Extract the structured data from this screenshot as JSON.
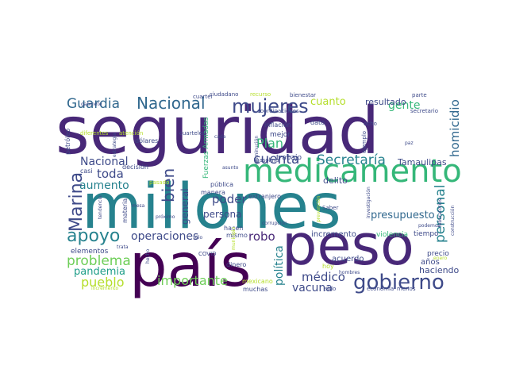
{
  "palette": {
    "dark_purple": "#440154",
    "purple": "#482878",
    "indigo": "#3e4a89",
    "blue": "#31688e",
    "teal": "#26828e",
    "green_teal": "#1f9e89",
    "green": "#35b779",
    "light_green": "#6ece58",
    "yellow_green": "#b5de2b",
    "yellow": "#fde725"
  },
  "words": [
    {
      "text": "seguridad",
      "color": "#482878"
    },
    {
      "text": "millones",
      "color": "#26828e"
    },
    {
      "text": "país",
      "color": "#440154"
    },
    {
      "text": "peso",
      "color": "#482878"
    },
    {
      "text": "medicamento",
      "color": "#35b779"
    },
    {
      "text": "gobierno",
      "color": "#3e4a89"
    },
    {
      "text": "mujeres",
      "color": "#3e4a89"
    },
    {
      "text": "Guardia",
      "color": "#31688e"
    },
    {
      "text": "Nacional",
      "color": "#31688e"
    },
    {
      "text": "apoyo",
      "color": "#26828e"
    },
    {
      "text": "Marina",
      "color": "#3e4a89"
    },
    {
      "text": "bien",
      "color": "#3e4a89"
    },
    {
      "text": "problema",
      "color": "#6ece58"
    },
    {
      "text": "pueblo",
      "color": "#b5de2b"
    },
    {
      "text": "importante",
      "color": "#6ece58"
    },
    {
      "text": "Secretaría",
      "color": "#26828e"
    },
    {
      "text": "cuenta",
      "color": "#3e4a89"
    },
    {
      "text": "Plan",
      "color": "#35b779"
    },
    {
      "text": "gente",
      "color": "#35b779"
    },
    {
      "text": "cuanto",
      "color": "#b5de2b"
    },
    {
      "text": "resultado",
      "color": "#3e4a89"
    },
    {
      "text": "homicidio",
      "color": "#31688e"
    },
    {
      "text": "personal",
      "color": "#26828e"
    },
    {
      "text": "presupuesto",
      "color": "#31688e"
    },
    {
      "text": "operaciones",
      "color": "#3e4a89"
    },
    {
      "text": "médico",
      "color": "#3e4a89"
    },
    {
      "text": "vacuna",
      "color": "#3e4a89"
    },
    {
      "text": "política",
      "color": "#26828e"
    },
    {
      "text": "robo",
      "color": "#482878"
    },
    {
      "text": "poder",
      "color": "#3e4a89"
    },
    {
      "text": "persona",
      "color": "#3e4a89"
    },
    {
      "text": "general",
      "color": "#3e4a89"
    },
    {
      "text": "Nacional",
      "color": "#3e4a89"
    },
    {
      "text": "toda",
      "color": "#3e4a89"
    },
    {
      "text": "aumento",
      "color": "#26828e"
    },
    {
      "text": "pandemia",
      "color": "#1f9e89"
    },
    {
      "text": "Tamaulipas",
      "color": "#3e4a89"
    },
    {
      "text": "delito",
      "color": "#3e4a89"
    },
    {
      "text": "incremento",
      "color": "#3e4a89"
    },
    {
      "text": "acuerdo",
      "color": "#3e4a89"
    },
    {
      "text": "haciendo",
      "color": "#3e4a89"
    },
    {
      "text": "años",
      "color": "#3e4a89"
    },
    {
      "text": "precio",
      "color": "#3e4a89"
    },
    {
      "text": "tiempo",
      "color": "#3e4a89"
    },
    {
      "text": "violencia",
      "color": "#35b779"
    },
    {
      "text": "mejor",
      "color": "#3e4a89"
    },
    {
      "text": "trabajo",
      "color": "#3e4a89"
    },
    {
      "text": "inflación",
      "color": "#3e4a89"
    },
    {
      "text": "dato",
      "color": "#3e4a89"
    },
    {
      "text": "decisión",
      "color": "#3e4a89"
    },
    {
      "text": "elementos",
      "color": "#3e4a89"
    },
    {
      "text": "muchas",
      "color": "#3e4a89"
    },
    {
      "text": "mexicano",
      "color": "#b5de2b"
    },
    {
      "text": "hoy",
      "color": "#b5de2b"
    },
    {
      "text": "dinero",
      "color": "#3e4a89"
    },
    {
      "text": "extranjero",
      "color": "#3e4a89"
    },
    {
      "text": "pública",
      "color": "#3e4a89"
    },
    {
      "text": "manera",
      "color": "#3e4a89"
    },
    {
      "text": "dólares",
      "color": "#3e4a89"
    },
    {
      "text": "casi",
      "color": "#3e4a89"
    },
    {
      "text": "materia",
      "color": "#3e4a89"
    },
    {
      "text": "petróleo",
      "color": "#3e4a89"
    },
    {
      "text": "cuarteles",
      "color": "#3e4a89"
    },
    {
      "text": "cuartel",
      "color": "#3e4a89"
    },
    {
      "text": "ciudadano",
      "color": "#3e4a89"
    },
    {
      "text": "recurso",
      "color": "#b5de2b"
    },
    {
      "text": "bienestar",
      "color": "#3e4a89"
    },
    {
      "text": "parte",
      "color": "#3e4a89"
    },
    {
      "text": "secretario",
      "color": "#3e4a89"
    },
    {
      "text": "ocho",
      "color": "#3e4a89"
    },
    {
      "text": "coordinaciones",
      "color": "#3e4a89"
    },
    {
      "text": "gasolina",
      "color": "#3e4a89"
    },
    {
      "text": "Fuerzas Armadas",
      "color": "#35b779"
    },
    {
      "text": "hacen",
      "color": "#3e4a89"
    },
    {
      "text": "mismo",
      "color": "#3e4a89"
    },
    {
      "text": "Saber",
      "color": "#3e4a89"
    },
    {
      "text": "podemos",
      "color": "#3e4a89"
    },
    {
      "text": "economía",
      "color": "#3e4a89"
    },
    {
      "text": "hombres",
      "color": "#3e4a89"
    },
    {
      "text": "sido",
      "color": "#3e4a89"
    },
    {
      "text": "menos",
      "color": "#3e4a89"
    },
    {
      "text": "corrupción",
      "color": "#3e4a89"
    },
    {
      "text": "próximo",
      "color": "#3e4a89"
    },
    {
      "text": "sólo",
      "color": "#3e4a89"
    },
    {
      "text": "COVID",
      "color": "#3e4a89"
    },
    {
      "text": "pasado",
      "color": "#b5de2b"
    },
    {
      "text": "tendencia",
      "color": "#3e4a89"
    },
    {
      "text": "trata",
      "color": "#3e4a89"
    },
    {
      "text": "mesa",
      "color": "#3e4a89"
    },
    {
      "text": "diferentes",
      "color": "#b5de2b"
    },
    {
      "text": "atención",
      "color": "#b5de2b"
    },
    {
      "text": "estrategia",
      "color": "#3e4a89"
    },
    {
      "text": "gabinete",
      "color": "#3e4a89"
    },
    {
      "text": "cada",
      "color": "#3e4a89"
    },
    {
      "text": "asunto",
      "color": "#3e4a89"
    },
    {
      "text": "ejemplo",
      "color": "#3e4a89"
    },
    {
      "text": "paz",
      "color": "#3e4a89"
    },
    {
      "text": "disminución",
      "color": "#3e4a89"
    },
    {
      "text": "investigación",
      "color": "#3e4a89"
    },
    {
      "text": "prevención",
      "color": "#b5de2b"
    },
    {
      "text": "laboratorios",
      "color": "#3e4a89"
    },
    {
      "text": "construcción",
      "color": "#3e4a89"
    },
    {
      "text": "enero",
      "color": "#b5de2b"
    },
    {
      "text": "hecho",
      "color": "#3e4a89"
    },
    {
      "text": "municipio",
      "color": "#b5de2b"
    },
    {
      "text": "incremento",
      "color": "#b5de2b"
    }
  ]
}
